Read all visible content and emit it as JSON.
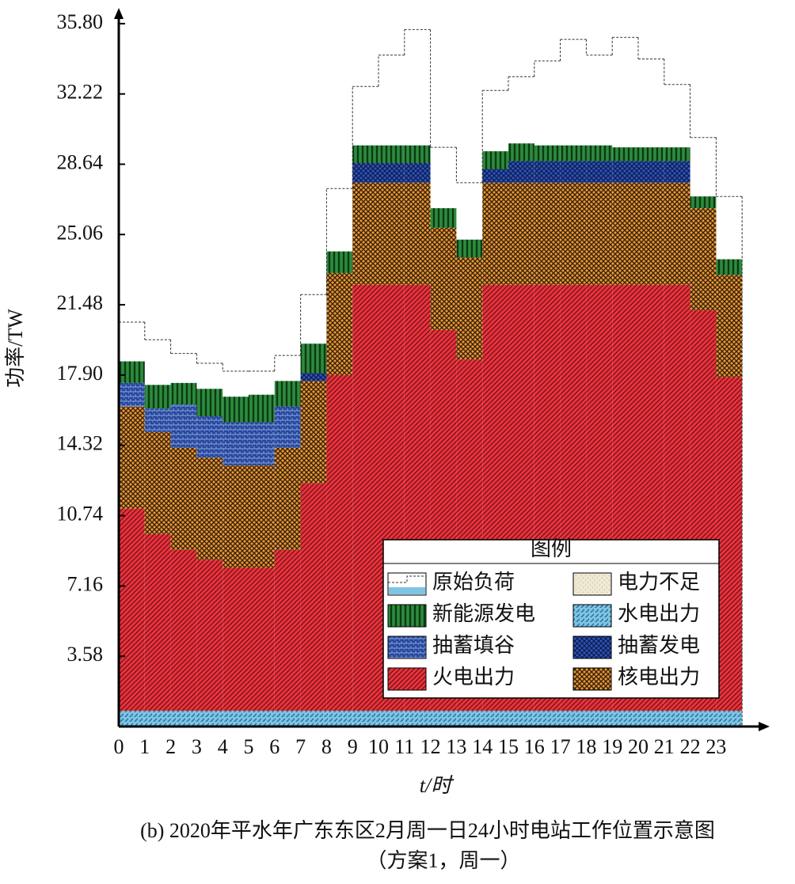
{
  "chart_data": {
    "type": "stacked-step-area",
    "y_label": "功率/TW",
    "x_label": "t/时",
    "caption": [
      "(b) 2020年平水年广东东区2月周一日24小时电站工作位置示意图",
      "（方案1，周一）"
    ],
    "legend_title": "图例",
    "categories": [
      "0",
      "1",
      "2",
      "3",
      "4",
      "5",
      "6",
      "7",
      "8",
      "9",
      "10",
      "11",
      "12",
      "13",
      "14",
      "15",
      "16",
      "17",
      "18",
      "19",
      "20",
      "21",
      "22",
      "23"
    ],
    "ylim": [
      0,
      36.4
    ],
    "yticks": [
      3.58,
      7.16,
      10.74,
      14.32,
      {
        "value": 17.9,
        "label": "17.90"
      },
      21.48,
      25.06,
      28.64,
      32.22,
      {
        "value": 35.8,
        "label": "35.80"
      }
    ],
    "load": {
      "name": "原始负荷",
      "color": "#ffffff",
      "values": [
        20.6,
        19.7,
        19.0,
        18.5,
        18.1,
        18.1,
        18.9,
        22.0,
        27.4,
        32.6,
        34.2,
        35.5,
        29.5,
        27.7,
        32.4,
        33.1,
        33.9,
        35.0,
        34.2,
        35.1,
        34.0,
        32.7,
        30.0,
        27.0
      ]
    },
    "series": [
      {
        "name": "水电出力",
        "color": "#7ec4e4",
        "values": [
          0.8,
          0.8,
          0.8,
          0.8,
          0.8,
          0.8,
          0.8,
          0.8,
          0.8,
          0.8,
          0.8,
          0.8,
          0.8,
          0.8,
          0.8,
          0.8,
          0.8,
          0.8,
          0.8,
          0.8,
          0.8,
          0.8,
          0.8,
          0.8
        ]
      },
      {
        "name": "火电出力",
        "color": "#e8323c",
        "values": [
          10.3,
          9.0,
          8.2,
          7.7,
          7.3,
          7.3,
          8.2,
          11.6,
          17.1,
          21.7,
          21.7,
          21.7,
          19.4,
          17.9,
          21.7,
          21.7,
          21.7,
          21.7,
          21.7,
          21.7,
          21.7,
          21.7,
          20.4,
          17.0
        ]
      },
      {
        "name": "核电出力",
        "color": "#e8983a",
        "values": [
          5.2,
          5.2,
          5.2,
          5.2,
          5.2,
          5.2,
          5.2,
          5.2,
          5.2,
          5.2,
          5.2,
          5.2,
          5.2,
          5.2,
          5.2,
          5.2,
          5.2,
          5.2,
          5.2,
          5.2,
          5.2,
          5.2,
          5.2,
          5.2
        ]
      },
      {
        "name": "抽蓄填谷",
        "color": "#27479c",
        "values": [
          1.2,
          1.2,
          2.2,
          2.1,
          2.2,
          2.2,
          2.1,
          0,
          0,
          0,
          0,
          0,
          0,
          0,
          0,
          0,
          0,
          0,
          0,
          0,
          0,
          0,
          0,
          0
        ]
      },
      {
        "name": "抽蓄发电",
        "color": "#2f55b4",
        "values": [
          0,
          0,
          0,
          0,
          0,
          0,
          0,
          0.4,
          0,
          1.0,
          1.0,
          1.0,
          0,
          0,
          0.7,
          1.1,
          1.1,
          1.1,
          1.1,
          1.1,
          1.1,
          1.1,
          0,
          0
        ]
      },
      {
        "name": "新能源发电",
        "color": "#2e8b3e",
        "values": [
          1.1,
          1.2,
          1.1,
          1.4,
          1.3,
          1.4,
          1.3,
          1.5,
          1.1,
          0.9,
          0.9,
          0.9,
          1.0,
          0.9,
          0.9,
          0.9,
          0.8,
          0.8,
          0.8,
          0.7,
          0.7,
          0.7,
          0.6,
          0.8
        ]
      },
      {
        "name": "电力不足",
        "color": "#efe9d4",
        "values": [
          0,
          0,
          0,
          0,
          0,
          0,
          0,
          0,
          0,
          0,
          0,
          0,
          0,
          0,
          0,
          0,
          0,
          0,
          0,
          0,
          0,
          0,
          0,
          0
        ]
      }
    ]
  }
}
